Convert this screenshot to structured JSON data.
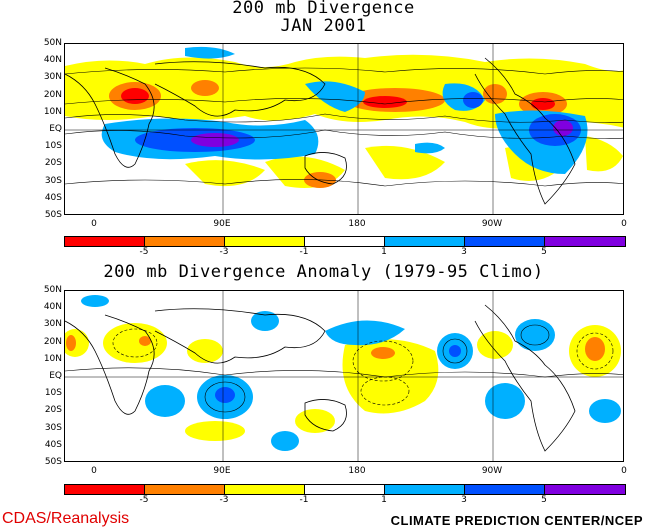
{
  "top_title_line1": "200 mb Divergence",
  "top_title_line2": "JAN 2001",
  "bottom_title": "200 mb Divergence Anomaly (1979-95 Climo)",
  "lat_labels": [
    "50N",
    "40N",
    "30N",
    "20N",
    "10N",
    "EQ",
    "10S",
    "20S",
    "30S",
    "40S",
    "50S"
  ],
  "lon_labels": [
    "0",
    "90E",
    "180",
    "90W",
    "0"
  ],
  "colorbar": {
    "colors": [
      "#ff0000",
      "#ff8000",
      "#ffff00",
      "#ffffff",
      "#00b0ff",
      "#0050ff",
      "#8000e0"
    ],
    "tick_labels": [
      "-5",
      "-3",
      "-1",
      "1",
      "3",
      "5"
    ]
  },
  "footer_left": "CDAS/Reanalysis",
  "footer_right": "CLIMATE PREDICTION CENTER/NCEP"
}
